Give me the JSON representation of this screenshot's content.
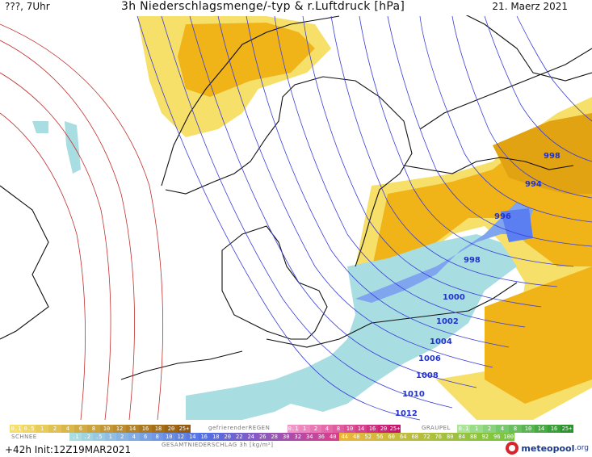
{
  "header": {
    "left": "???, 7Uhr",
    "title": "3h Niederschlagsmenge/-typ & r.Luftdruck [hPa]",
    "date": "21. Maerz 2021"
  },
  "isobars": [
    {
      "label": "998"
    },
    {
      "label": "994"
    },
    {
      "label": "996"
    },
    {
      "label": "998"
    },
    {
      "label": "1000"
    },
    {
      "label": "1002"
    },
    {
      "label": "1004"
    },
    {
      "label": "1006"
    },
    {
      "label": "1008"
    },
    {
      "label": "1010"
    },
    {
      "label": "1012"
    }
  ],
  "legend": {
    "rain_scale": [
      "0.1",
      "0.5",
      "1",
      "2",
      "4",
      "6",
      "8",
      "10",
      "12",
      "14",
      "16",
      "18",
      "20",
      "25+"
    ],
    "rain_caption": "",
    "freezing_caption": "gefrierenderREGEN",
    "freezing_scale": [
      "0.1",
      "1",
      "2",
      "4",
      "8",
      "10",
      "14",
      "16",
      "20",
      "25+"
    ],
    "graupel_caption": "GRAUPEL",
    "graupel_scale": [
      "0.1",
      "1",
      "2",
      "4",
      "8",
      "10",
      "14",
      "16",
      "25+"
    ],
    "snow_caption": "SCHNEE",
    "snow_scale": [
      ".1",
      ".2",
      ".5",
      "1",
      "2",
      "4",
      "6",
      "8",
      "10",
      "12",
      "14",
      "16",
      "18",
      "20",
      "22",
      "24",
      "26",
      "28",
      "30",
      "32",
      "34",
      "36",
      "40",
      "44",
      "48",
      "52",
      "56",
      "60",
      "64",
      "68",
      "72",
      "76",
      "80",
      "84",
      "88",
      "92",
      "96",
      "100"
    ],
    "total_caption": "GESAMTNIEDERSCHLAG 3h [kg/m²]",
    "colors": {
      "rain_low": "#f6e06a",
      "rain_mid": "#f0b318",
      "rain_high": "#c57a10",
      "freezing": "#e83e9a",
      "graupel": "#59c24a",
      "snow_light": "#a8dde2",
      "snow_mid": "#7fa5ef",
      "snow_high": "#3457e8",
      "isobar": "#3a3fd8",
      "isobar_high": "#c0302e"
    }
  },
  "footer": {
    "run": "+42h Init:12Z19MAR2021",
    "logo": "meteopool",
    "logo_suffix": ".org"
  }
}
